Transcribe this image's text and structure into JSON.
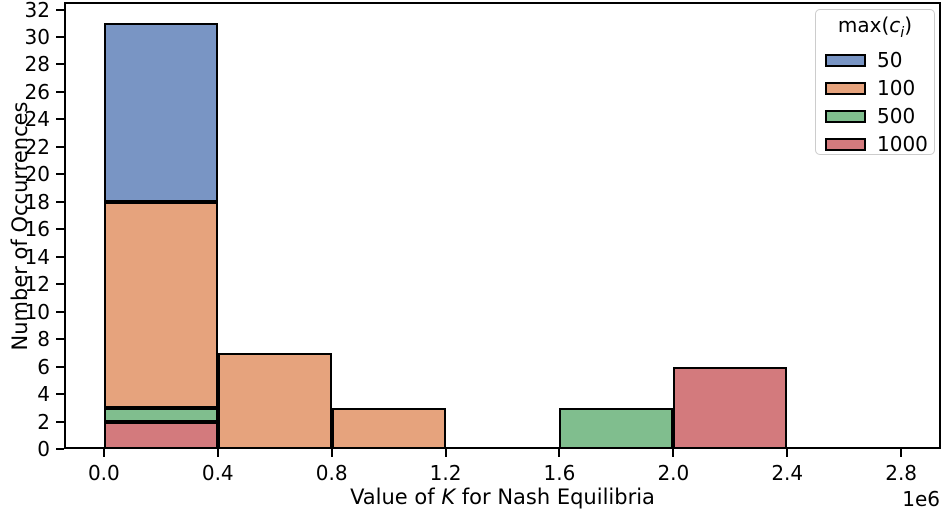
{
  "chart_data": {
    "type": "histogram",
    "stacked": true,
    "title": "",
    "xlabel": "Value of K for Nash Equilibria",
    "xlabel_parts": {
      "prefix": "Value of ",
      "variable": "K",
      "suffix": " for Nash Equilibria"
    },
    "ylabel": "Number of Occurrences",
    "x_scale_offset_label": "1e6",
    "xlim": [
      -140000,
      2940000
    ],
    "ylim": [
      0,
      32.55
    ],
    "grid": false,
    "xtick_values": [
      0,
      400000,
      800000,
      1200000,
      1600000,
      2000000,
      2400000,
      2800000
    ],
    "xtick_labels": [
      "0.0",
      "0.4",
      "0.8",
      "1.2",
      "1.6",
      "2.0",
      "2.4",
      "2.8"
    ],
    "ytick_values": [
      0,
      2,
      4,
      6,
      8,
      10,
      12,
      14,
      16,
      18,
      20,
      22,
      24,
      26,
      28,
      30,
      32
    ],
    "edge_color": "#000000",
    "series_colors": {
      "50": "#7995C4",
      "100": "#E6A37D",
      "500": "#80BE8E",
      "1000": "#D37A7D"
    },
    "legend": {
      "position": "upper right",
      "title": {
        "prefix": "max(",
        "variable": "c",
        "subscript": "i",
        "suffix": ")"
      },
      "entries": [
        {
          "label": "50",
          "fill": "#7995C4",
          "edge": "#000000"
        },
        {
          "label": "100",
          "fill": "#E6A37D",
          "edge": "#000000"
        },
        {
          "label": "500",
          "fill": "#80BE8E",
          "edge": "#000000"
        },
        {
          "label": "1000",
          "fill": "#D37A7D",
          "edge": "#000000"
        }
      ]
    },
    "bins": [
      {
        "x0": 0,
        "x1": 400000,
        "stack": [
          {
            "series": "1000",
            "count": 2
          },
          {
            "series": "500",
            "count": 1
          },
          {
            "series": "100",
            "count": 15
          },
          {
            "series": "50",
            "count": 13
          }
        ]
      },
      {
        "x0": 400000,
        "x1": 800000,
        "stack": [
          {
            "series": "100",
            "count": 7
          }
        ]
      },
      {
        "x0": 800000,
        "x1": 1200000,
        "stack": [
          {
            "series": "100",
            "count": 3
          }
        ]
      },
      {
        "x0": 1200000,
        "x1": 1600000,
        "stack": []
      },
      {
        "x0": 1600000,
        "x1": 2000000,
        "stack": [
          {
            "series": "500",
            "count": 3
          }
        ]
      },
      {
        "x0": 2000000,
        "x1": 2400000,
        "stack": [
          {
            "series": "1000",
            "count": 6
          }
        ]
      },
      {
        "x0": 2400000,
        "x1": 2800000,
        "stack": []
      }
    ]
  }
}
